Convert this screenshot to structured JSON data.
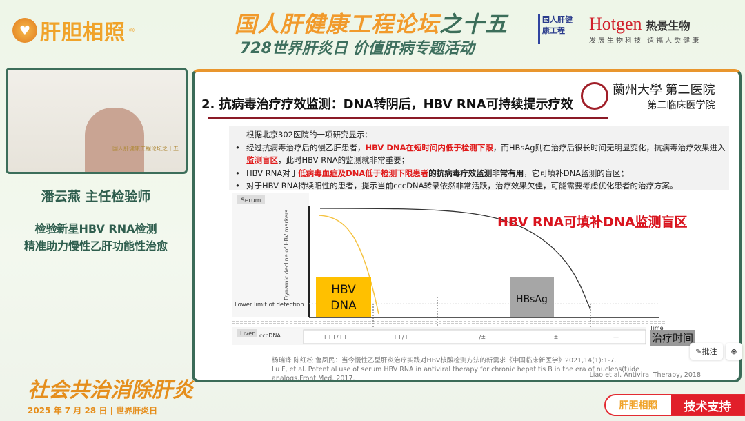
{
  "header": {
    "brand": "肝胆相照",
    "brand_mark": "®",
    "title_main": "国人肝健康工程论坛",
    "title_suffix": "之十五",
    "subtitle": "728世界肝炎日 价值肝病专题活动",
    "partner1": "国人肝健康工程",
    "partner2_name": "Hotgen",
    "partner2_cn": "热景生物",
    "partner2_slogan": "发展生物科技 造福人类健康"
  },
  "speaker": {
    "video_caption": "国人肝健康工程论坛之十五",
    "name": "潘云燕  主任检验师",
    "topic_line1": "检验新星HBV RNA检测",
    "topic_line2": "精准助力慢性乙肝功能性治愈"
  },
  "slide": {
    "heading": "2. 抗病毒治疗疗效监测：DNA转阴后，HBV RNA可持续提示疗效",
    "institution_line1": "蘭州大學 第二医院",
    "institution_line2": "第二临床医学院",
    "intro": "根据北京302医院的一项研究显示：",
    "b1_a": "经过抗病毒治疗后的慢乙肝患者，",
    "b1_red": "HBV DNA在短时间内低于检测下限",
    "b1_b": "，而HBsAg则在治疗后很长时间无明显变化，抗病毒治疗效果进入",
    "b1_red2": "监测盲区",
    "b1_c": "，此时HBV RNA的监测就非常重要；",
    "b2_a": "HBV RNA对于",
    "b2_red": "低病毒血症及DNA低于检测下限患者",
    "b2_bold": "的抗病毒疗效监测非常有用",
    "b2_b": "，它可填补DNA监测的盲区；",
    "b3": "对于HBV RNA持续阳性的患者，提示当前cccDNA转录依然非常活跃，治疗效果欠佳，可能需要考虑优化患者的治疗方案。",
    "figure": {
      "serum": "Serum",
      "liver": "Liver",
      "ylabel": "Dynamic decline of HBV markers",
      "lld": "Lower limit of detection",
      "time": "Time",
      "treatment_time": "治疗时间",
      "callout": "HBV RNA可填补DNA监测盲区",
      "dna_label_1": "HBV",
      "dna_label_2": "DNA",
      "hbsag_label": "HBsAg",
      "cccdna": "cccDNA",
      "cccdna_levels": [
        "+++/++",
        "++/+",
        "+/±",
        "±",
        "—"
      ],
      "dna_color": "#ffc000",
      "hbsag_box_color": "#a6a6a6",
      "callout_color": "#d9141e"
    },
    "cite1": "杨瑞锋 陈红松 鲁凤民：当今慢性乙型肝炎治疗实践对HBV核酸检测方法的新需求《中国临床新医学》2021,14(1):1-7.",
    "cite2": "Lu F, et al. Potential use of serum HBV RNA in antiviral therapy for chronic hepatitis B in the era of nucleos(t)ide analogs.Front Med. 2017.",
    "cite3": "Liao  et al. Antiviral Therapy, 2018"
  },
  "tools": {
    "annotate": "批注"
  },
  "footer": {
    "slogan": "社会共治消除肝炎",
    "date": "2025 年 7 月 28 日 | 世界肝炎日",
    "tech_brand": "肝胆相照",
    "tech_label": "技术支持"
  }
}
